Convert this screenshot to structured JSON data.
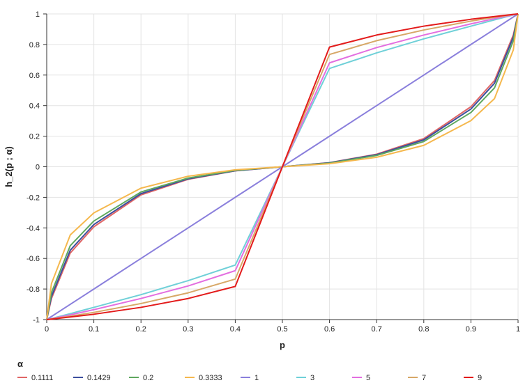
{
  "chart_data": {
    "type": "line",
    "title": "",
    "xlabel": "p",
    "ylabel": "h_2(p ; α)",
    "xlim": [
      0,
      1
    ],
    "ylim": [
      -1,
      1
    ],
    "x_ticks": [
      "0",
      "0.1",
      "0.2",
      "0.3",
      "0.4",
      "0.5",
      "0.6",
      "0.7",
      "0.8",
      "0.9",
      "1"
    ],
    "y_ticks": [
      "-1",
      "-0.8",
      "-0.6",
      "-0.4",
      "-0.2",
      "0",
      "0.2",
      "0.4",
      "0.6",
      "0.8",
      "1"
    ],
    "grid": true,
    "legend_title": "α",
    "legend_position": "bottom",
    "x": [
      0,
      0.01,
      0.05,
      0.1,
      0.2,
      0.3,
      0.4,
      0.5,
      0.6,
      0.7,
      0.8,
      0.9,
      0.95,
      0.99,
      1
    ],
    "series": [
      {
        "name": "0.1111",
        "color": "#e06666",
        "values": [
          -1,
          -0.863,
          -0.564,
          -0.393,
          -0.184,
          -0.082,
          -0.027,
          0,
          0.027,
          0.082,
          0.184,
          0.393,
          0.564,
          0.863,
          1
        ]
      },
      {
        "name": "0.1429",
        "color": "#3c4f9e",
        "values": [
          -1,
          -0.849,
          -0.546,
          -0.378,
          -0.176,
          -0.079,
          -0.026,
          0,
          0.026,
          0.079,
          0.176,
          0.378,
          0.546,
          0.849,
          1
        ]
      },
      {
        "name": "0.2",
        "color": "#5fa85f",
        "values": [
          -1,
          -0.824,
          -0.516,
          -0.355,
          -0.165,
          -0.074,
          -0.024,
          0,
          0.024,
          0.074,
          0.165,
          0.355,
          0.516,
          0.824,
          1
        ]
      },
      {
        "name": "0.3333",
        "color": "#f5b84e",
        "values": [
          -1,
          -0.765,
          -0.446,
          -0.302,
          -0.14,
          -0.062,
          -0.02,
          0,
          0.02,
          0.062,
          0.14,
          0.302,
          0.446,
          0.765,
          1
        ]
      },
      {
        "name": "1",
        "color": "#8a7fdc",
        "values": [
          -1,
          -0.98,
          -0.9,
          -0.8,
          -0.6,
          -0.4,
          -0.2,
          0,
          0.2,
          0.4,
          0.6,
          0.8,
          0.9,
          0.98,
          1
        ]
      },
      {
        "name": "3",
        "color": "#6fd0d8",
        "values": [
          -1,
          -0.993,
          -0.961,
          -0.92,
          -0.837,
          -0.745,
          -0.643,
          0,
          0.643,
          0.745,
          0.837,
          0.92,
          0.961,
          0.993,
          1
        ]
      },
      {
        "name": "5",
        "color": "#e36ee0",
        "values": [
          -1,
          -0.994,
          -0.969,
          -0.935,
          -0.862,
          -0.78,
          -0.68,
          0,
          0.68,
          0.78,
          0.862,
          0.935,
          0.969,
          0.994,
          1
        ]
      },
      {
        "name": "7",
        "color": "#d7a867",
        "values": [
          -1,
          -0.996,
          -0.978,
          -0.953,
          -0.895,
          -0.825,
          -0.735,
          0,
          0.735,
          0.825,
          0.895,
          0.953,
          0.978,
          0.996,
          1
        ]
      },
      {
        "name": "9",
        "color": "#e31b1b",
        "values": [
          -1,
          -0.997,
          -0.983,
          -0.965,
          -0.92,
          -0.862,
          -0.783,
          0,
          0.783,
          0.862,
          0.92,
          0.965,
          0.983,
          0.997,
          1
        ]
      }
    ]
  }
}
